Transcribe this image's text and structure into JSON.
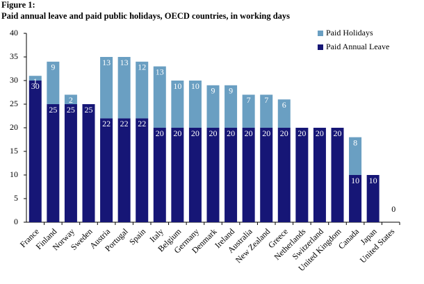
{
  "chart_data": {
    "type": "stacked-bar",
    "title": "Figure 1:",
    "subtitle": "Paid annual leave and paid public holidays, OECD countries, in working days",
    "categories": [
      "France",
      "Finland",
      "Norway",
      "Sweden",
      "Austria",
      "Portugal",
      "Spain",
      "Italy",
      "Belgium",
      "Germany",
      "Denmark",
      "Ireland",
      "Australia",
      "New Zealand",
      "Greece",
      "Netherlands",
      "Switzerland",
      "United Kingdom",
      "Canada",
      "Japan",
      "United States"
    ],
    "series": [
      {
        "name": "Paid Holidays",
        "color": "#6a9fc2",
        "values": [
          1,
          9,
          2,
          null,
          13,
          13,
          12,
          13,
          10,
          10,
          9,
          9,
          7,
          7,
          6,
          null,
          null,
          null,
          8,
          null,
          null
        ]
      },
      {
        "name": "Paid Annual Leave",
        "color": "#161676",
        "values": [
          30,
          25,
          25,
          25,
          22,
          22,
          22,
          20,
          20,
          20,
          20,
          20,
          20,
          20,
          20,
          20,
          20,
          20,
          10,
          10,
          0
        ]
      }
    ],
    "ylim": [
      0,
      40
    ],
    "yticks": [
      0,
      5,
      10,
      15,
      20,
      25,
      30,
      35,
      40
    ],
    "legend": "top-right"
  }
}
